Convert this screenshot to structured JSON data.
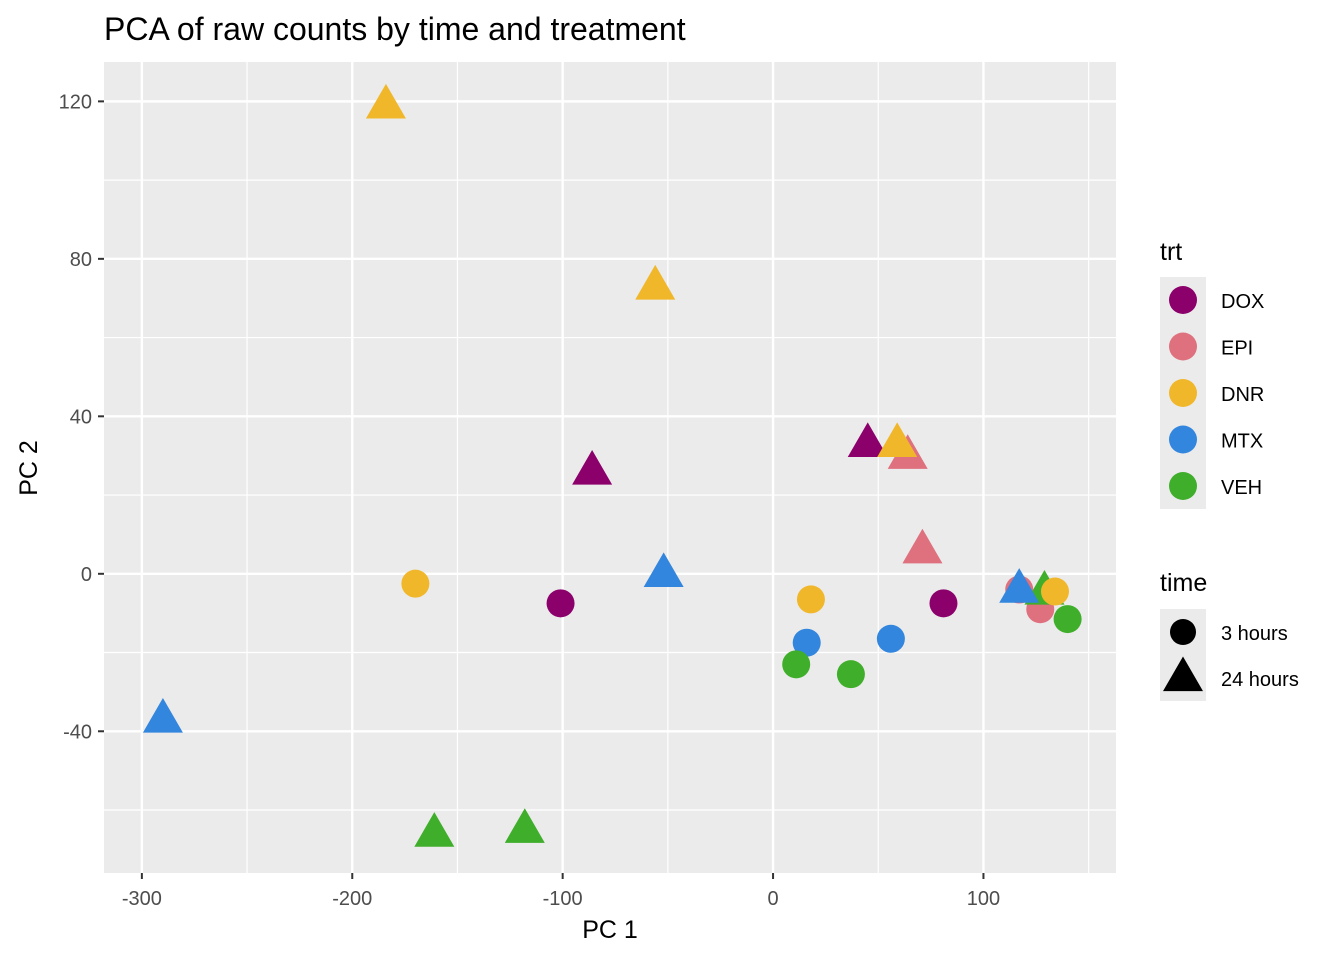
{
  "chart_data": {
    "type": "scatter",
    "title": "PCA of raw counts by time and treatment",
    "xlabel": "PC 1",
    "ylabel": "PC 2",
    "xlim": [
      -318,
      163
    ],
    "ylim": [
      -76,
      130
    ],
    "x_ticks": [
      -300,
      -200,
      -100,
      0,
      100
    ],
    "y_ticks": [
      -40,
      0,
      40,
      80,
      120
    ],
    "x_tick_labels": [
      "-300",
      "-200",
      "-100",
      "0",
      "100"
    ],
    "y_tick_labels": [
      "-40",
      "0",
      "40",
      "80",
      "120"
    ],
    "grid": true,
    "legend_placement": "right",
    "treatment_legend": {
      "title": "trt",
      "entries": [
        {
          "key": "DOX",
          "label": "DOX",
          "color": "#8B006B"
        },
        {
          "key": "EPI",
          "label": "EPI",
          "color": "#DF707E"
        },
        {
          "key": "DNR",
          "label": "DNR",
          "color": "#F1B72B"
        },
        {
          "key": "MTX",
          "label": "MTX",
          "color": "#3386DD"
        },
        {
          "key": "VEH",
          "label": "VEH",
          "color": "#3FAE2A"
        }
      ]
    },
    "time_legend": {
      "title": "time",
      "entries": [
        {
          "key": "3 hours",
          "label": "3 hours",
          "shape": "circle"
        },
        {
          "key": "24 hours",
          "label": "24 hours",
          "shape": "triangle"
        }
      ]
    },
    "points": [
      {
        "x": -184,
        "y": 119,
        "trt": "DNR",
        "time": "24 hours"
      },
      {
        "x": -56,
        "y": 73,
        "trt": "DNR",
        "time": "24 hours"
      },
      {
        "x": 45,
        "y": 33,
        "trt": "DOX",
        "time": "24 hours"
      },
      {
        "x": 64,
        "y": 30,
        "trt": "EPI",
        "time": "24 hours"
      },
      {
        "x": 59,
        "y": 33,
        "trt": "DNR",
        "time": "24 hours"
      },
      {
        "x": -86,
        "y": 26,
        "trt": "DOX",
        "time": "24 hours"
      },
      {
        "x": 71,
        "y": 6,
        "trt": "EPI",
        "time": "24 hours"
      },
      {
        "x": -52,
        "y": 0,
        "trt": "MTX",
        "time": "24 hours"
      },
      {
        "x": -170,
        "y": -2.5,
        "trt": "DNR",
        "time": "3 hours"
      },
      {
        "x": -101,
        "y": -7.5,
        "trt": "DOX",
        "time": "3 hours"
      },
      {
        "x": 18,
        "y": -6.5,
        "trt": "DNR",
        "time": "3 hours"
      },
      {
        "x": 81,
        "y": -7.5,
        "trt": "DOX",
        "time": "3 hours"
      },
      {
        "x": 16,
        "y": -17.5,
        "trt": "MTX",
        "time": "3 hours"
      },
      {
        "x": 56,
        "y": -16.5,
        "trt": "MTX",
        "time": "3 hours"
      },
      {
        "x": 11,
        "y": -23,
        "trt": "VEH",
        "time": "3 hours"
      },
      {
        "x": 37,
        "y": -25.5,
        "trt": "VEH",
        "time": "3 hours"
      },
      {
        "x": 117,
        "y": -4,
        "trt": "EPI",
        "time": "3 hours"
      },
      {
        "x": 127,
        "y": -9,
        "trt": "EPI",
        "time": "3 hours"
      },
      {
        "x": 129,
        "y": -4.5,
        "trt": "VEH",
        "time": "24 hours"
      },
      {
        "x": 134,
        "y": -4.5,
        "trt": "DNR",
        "time": "3 hours"
      },
      {
        "x": 140,
        "y": -11.5,
        "trt": "VEH",
        "time": "3 hours"
      },
      {
        "x": 117,
        "y": -4,
        "trt": "MTX",
        "time": "24 hours"
      },
      {
        "x": -290,
        "y": -37,
        "trt": "MTX",
        "time": "24 hours"
      },
      {
        "x": -161,
        "y": -66,
        "trt": "VEH",
        "time": "24 hours"
      },
      {
        "x": -118,
        "y": -65,
        "trt": "VEH",
        "time": "24 hours"
      }
    ]
  }
}
